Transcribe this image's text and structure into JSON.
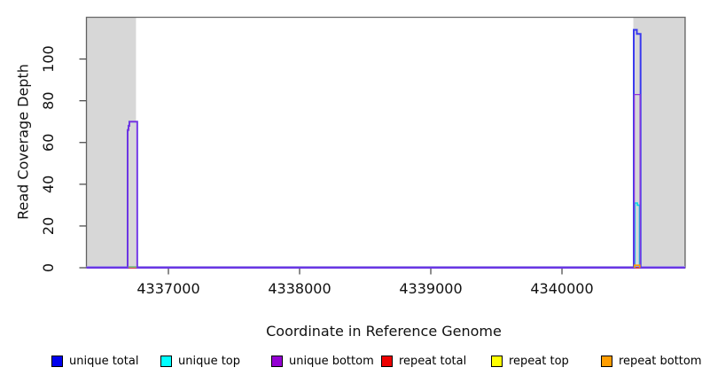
{
  "chart_data": {
    "type": "line",
    "title": "",
    "xlabel": "Coordinate in Reference Genome",
    "ylabel": "Read Coverage Depth",
    "xlim": [
      4336375,
      4340939
    ],
    "ylim": [
      0,
      120
    ],
    "x_ticks": [
      4337000,
      4338000,
      4339000,
      4340000
    ],
    "x_tick_labels": [
      "4337000",
      "4338000",
      "4339000",
      "4340000"
    ],
    "y_ticks": [
      0,
      20,
      40,
      60,
      80,
      100
    ],
    "y_tick_labels": [
      "0",
      "20",
      "40",
      "60",
      "80",
      "100"
    ],
    "grid": false,
    "legend_position": "bottom",
    "masked_regions": {
      "color": "#d9d9d9",
      "ranges": [
        [
          4336375,
          4336753
        ],
        [
          4340544,
          4340939
        ]
      ]
    },
    "series": [
      {
        "name": "repeat total",
        "color": "#dd0000",
        "points": [
          [
            4336375,
            0
          ],
          [
            4340939,
            0
          ]
        ]
      },
      {
        "name": "unique total",
        "color": "#3a3aee",
        "points": [
          [
            4336375,
            0
          ],
          [
            4336689,
            0
          ],
          [
            4336689,
            66
          ],
          [
            4336696,
            66
          ],
          [
            4336696,
            68
          ],
          [
            4336703,
            68
          ],
          [
            4336703,
            70
          ],
          [
            4336762,
            70
          ],
          [
            4336762,
            0
          ],
          [
            4340547,
            0
          ],
          [
            4340547,
            114
          ],
          [
            4340571,
            114
          ],
          [
            4340571,
            112
          ],
          [
            4340599,
            112
          ],
          [
            4340599,
            0
          ],
          [
            4340939,
            0
          ]
        ]
      },
      {
        "name": "unique top",
        "color": "#00d8e8",
        "points": [
          [
            4340556,
            0
          ],
          [
            4340556,
            31
          ],
          [
            4340575,
            31
          ],
          [
            4340575,
            30
          ],
          [
            4340591,
            30
          ],
          [
            4340591,
            0
          ]
        ]
      },
      {
        "name": "unique bottom",
        "color": "#8833dd",
        "points": [
          [
            4336375,
            0
          ],
          [
            4336690,
            0
          ],
          [
            4336690,
            66
          ],
          [
            4336697,
            66
          ],
          [
            4336697,
            68
          ],
          [
            4336704,
            68
          ],
          [
            4336704,
            70
          ],
          [
            4336761,
            70
          ],
          [
            4336761,
            0
          ],
          [
            4340551,
            0
          ],
          [
            4340551,
            83
          ],
          [
            4340596,
            83
          ],
          [
            4340596,
            0
          ],
          [
            4340939,
            0
          ]
        ]
      },
      {
        "name": "repeat top",
        "color": "#7dc87d",
        "points": [
          [
            4336694,
            0.4
          ],
          [
            4336757,
            0.4
          ]
        ]
      },
      {
        "name": "repeat bottom",
        "color": "#ff9900",
        "points": [
          [
            4340552,
            0
          ],
          [
            4340552,
            1.2
          ],
          [
            4340593,
            1.2
          ],
          [
            4340593,
            0
          ]
        ]
      }
    ],
    "legend": [
      {
        "label": "unique total",
        "fill": "#0000ee"
      },
      {
        "label": "unique top",
        "fill": "#00ffff"
      },
      {
        "label": "unique bottom",
        "fill": "#9400d3"
      },
      {
        "label": "repeat total",
        "fill": "#ee0000"
      },
      {
        "label": "repeat top",
        "fill": "#ffff00"
      },
      {
        "label": "repeat bottom",
        "fill": "#ff9d00"
      }
    ]
  }
}
